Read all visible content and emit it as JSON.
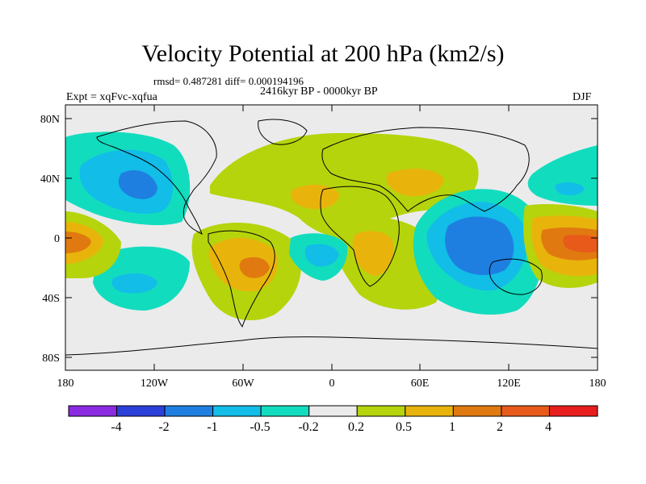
{
  "title": "Velocity Potential at 200 hPa (km2/s)",
  "stats": "rmsd= 0.487281 diff= 0.000194196",
  "period": "2416kyr BP - 0000kyr BP",
  "experiment": "Expt = xqFvc-xqfua",
  "season": "DJF",
  "lat_labels": [
    "80N",
    "40N",
    "0",
    "40S",
    "80S"
  ],
  "lon_labels": [
    "180",
    "120W",
    "60W",
    "0",
    "60E",
    "120E",
    "180"
  ],
  "colorbar": {
    "labels": [
      "-4",
      "-2",
      "-1",
      "-0.5",
      "-0.2",
      "0.2",
      "0.5",
      "1",
      "2",
      "4"
    ],
    "colors": [
      "#8a2be2",
      "#2b3fd9",
      "#1f7fe0",
      "#12bde8",
      "#12dcbe",
      "#ebebeb",
      "#b5d40c",
      "#e8b40c",
      "#e07a10",
      "#e85a1a",
      "#e81e1e"
    ]
  }
}
